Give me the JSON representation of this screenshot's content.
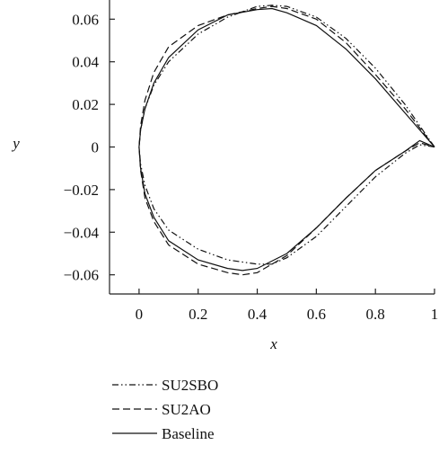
{
  "chart_data": {
    "type": "line",
    "x_label": "x",
    "y_label": "y",
    "xlim": [
      -0.1,
      1
    ],
    "ylim": [
      -0.069,
      0.069
    ],
    "xticks": [
      0,
      0.2,
      0.4,
      0.6,
      0.8,
      1
    ],
    "yticks": [
      {
        "value": -0.06,
        "label": "−0.06"
      },
      {
        "value": -0.04,
        "label": "−0.04"
      },
      {
        "value": -0.02,
        "label": "−0.02"
      },
      0,
      0.02,
      0.04,
      0.06
    ],
    "legend": "below",
    "series": [
      {
        "name": "SU2SBO",
        "color": "#111111",
        "dash": "7 3 1.5 3 1.5 3",
        "x": [
          1,
          0.95,
          0.9,
          0.8,
          0.7,
          0.6,
          0.5,
          0.45,
          0.4,
          0.3,
          0.2,
          0.1,
          0.05,
          0.02,
          0.005,
          0,
          0.005,
          0.02,
          0.05,
          0.1,
          0.2,
          0.3,
          0.4,
          0.45,
          0.5,
          0.6,
          0.7,
          0.8,
          0.9,
          0.95,
          1
        ],
        "values": [
          0,
          0.01,
          0.02,
          0.037,
          0.051,
          0.061,
          0.066,
          0.0665,
          0.066,
          0.061,
          0.053,
          0.04,
          0.029,
          0.018,
          0.008,
          0,
          -0.008,
          -0.018,
          -0.029,
          -0.039,
          -0.048,
          -0.053,
          -0.055,
          -0.055,
          -0.052,
          -0.042,
          -0.028,
          -0.014,
          -0.003,
          0.001,
          0
        ]
      },
      {
        "name": "SU2AO",
        "color": "#111111",
        "dash": "8 4",
        "x": [
          1,
          0.95,
          0.9,
          0.8,
          0.7,
          0.6,
          0.5,
          0.45,
          0.4,
          0.3,
          0.2,
          0.1,
          0.05,
          0.02,
          0.005,
          0,
          0.005,
          0.02,
          0.05,
          0.1,
          0.2,
          0.3,
          0.35,
          0.4,
          0.5,
          0.6,
          0.7,
          0.8,
          0.9,
          0.95,
          1
        ],
        "values": [
          0,
          0.009,
          0.018,
          0.034,
          0.049,
          0.06,
          0.065,
          0.066,
          0.065,
          0.062,
          0.057,
          0.047,
          0.035,
          0.022,
          0.01,
          0,
          -0.011,
          -0.024,
          -0.035,
          -0.046,
          -0.055,
          -0.059,
          -0.06,
          -0.059,
          -0.051,
          -0.038,
          -0.024,
          -0.011,
          -0.002,
          0.002,
          0
        ]
      },
      {
        "name": "Baseline",
        "color": "#111111",
        "dash": "",
        "x": [
          1,
          0.95,
          0.9,
          0.8,
          0.7,
          0.6,
          0.5,
          0.45,
          0.4,
          0.3,
          0.2,
          0.1,
          0.05,
          0.02,
          0.005,
          0,
          0.005,
          0.02,
          0.05,
          0.1,
          0.2,
          0.3,
          0.35,
          0.4,
          0.5,
          0.6,
          0.7,
          0.8,
          0.9,
          0.95,
          1
        ],
        "values": [
          0,
          0.008,
          0.016,
          0.032,
          0.046,
          0.057,
          0.063,
          0.065,
          0.0645,
          0.062,
          0.055,
          0.042,
          0.03,
          0.018,
          0.008,
          0,
          -0.01,
          -0.022,
          -0.033,
          -0.044,
          -0.053,
          -0.057,
          -0.058,
          -0.057,
          -0.05,
          -0.038,
          -0.024,
          -0.011,
          -0.002,
          0.003,
          0
        ]
      }
    ]
  }
}
